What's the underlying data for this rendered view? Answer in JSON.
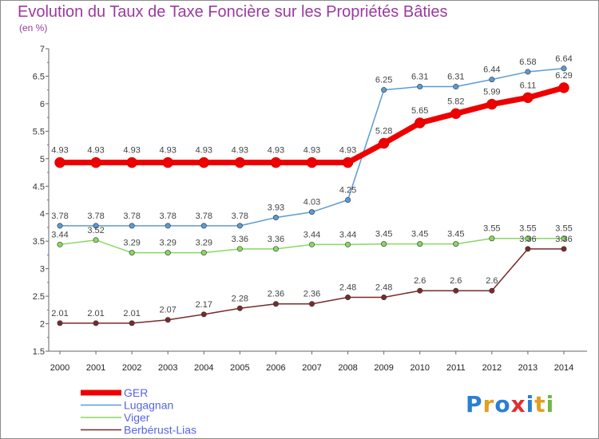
{
  "chart_data": {
    "type": "line",
    "title": "Evolution du Taux de Taxe Foncière sur les Propriétés Bâties",
    "subtitle": "(en %)",
    "xlabel": "",
    "ylabel": "",
    "ylim": [
      1.5,
      7
    ],
    "yticks": [
      "1.5",
      "2",
      "2.5",
      "3",
      "3.5",
      "4",
      "4.5",
      "5",
      "5.5",
      "6",
      "6.5",
      "7"
    ],
    "categories": [
      "2000",
      "2001",
      "2002",
      "2003",
      "2004",
      "2005",
      "2006",
      "2007",
      "2008",
      "2009",
      "2010",
      "2011",
      "2012",
      "2013",
      "2014"
    ],
    "series": [
      {
        "name": "GER",
        "color": "#ee0000",
        "values": [
          4.93,
          4.93,
          4.93,
          4.93,
          4.93,
          4.93,
          4.93,
          4.93,
          4.93,
          5.28,
          5.65,
          5.82,
          5.99,
          6.11,
          6.29
        ],
        "labels": [
          "4.93",
          "4.93",
          "4.93",
          "4.93",
          "4.93",
          "4.93",
          "4.93",
          "4.93",
          "4.93",
          "5.28",
          "5.65",
          "5.82",
          "5.99",
          "6.11",
          "6.29"
        ]
      },
      {
        "name": "Lugagnan",
        "color": "#5b9bd5",
        "values": [
          3.78,
          3.78,
          3.78,
          3.78,
          3.78,
          3.78,
          3.93,
          4.03,
          4.25,
          6.25,
          6.31,
          6.31,
          6.44,
          6.58,
          6.64
        ],
        "labels": [
          "3.78",
          "3.78",
          "3.78",
          "3.78",
          "3.78",
          "3.78",
          "3.93",
          "4.03",
          "4.25",
          "6.25",
          "6.31",
          "6.31",
          "6.44",
          "6.58",
          "6.64"
        ]
      },
      {
        "name": "Viger",
        "color": "#88d860",
        "values": [
          3.44,
          3.52,
          3.29,
          3.29,
          3.29,
          3.36,
          3.36,
          3.44,
          3.44,
          3.45,
          3.45,
          3.45,
          3.55,
          3.55,
          3.55
        ],
        "labels": [
          "3.44",
          "3.52",
          "3.29",
          "3.29",
          "3.29",
          "3.36",
          "3.36",
          "3.44",
          "3.44",
          "3.45",
          "3.45",
          "3.45",
          "3.55",
          "3.55",
          "3.55"
        ]
      },
      {
        "name": "Berbérust-Lias",
        "color": "#7a2a2a",
        "values": [
          2.01,
          2.01,
          2.01,
          2.07,
          2.17,
          2.28,
          2.36,
          2.36,
          2.48,
          2.48,
          2.6,
          2.6,
          2.6,
          3.36,
          3.36
        ],
        "labels": [
          "2.01",
          "2.01",
          "2.01",
          "2.07",
          "2.17",
          "2.28",
          "2.36",
          "2.36",
          "2.48",
          "2.48",
          "2.6",
          "2.6",
          "2.6",
          "3.36",
          "3.36"
        ]
      }
    ],
    "legend_position": "bottom-left",
    "grid": false
  },
  "logo": {
    "letters": [
      "P",
      "r",
      "o",
      "x",
      "i",
      "t",
      "i"
    ],
    "colors": [
      "#2a7fd4",
      "#e0a020",
      "#2a7fd4",
      "#e03030",
      "#2a7fd4",
      "#e0a020",
      "#70b840"
    ]
  }
}
